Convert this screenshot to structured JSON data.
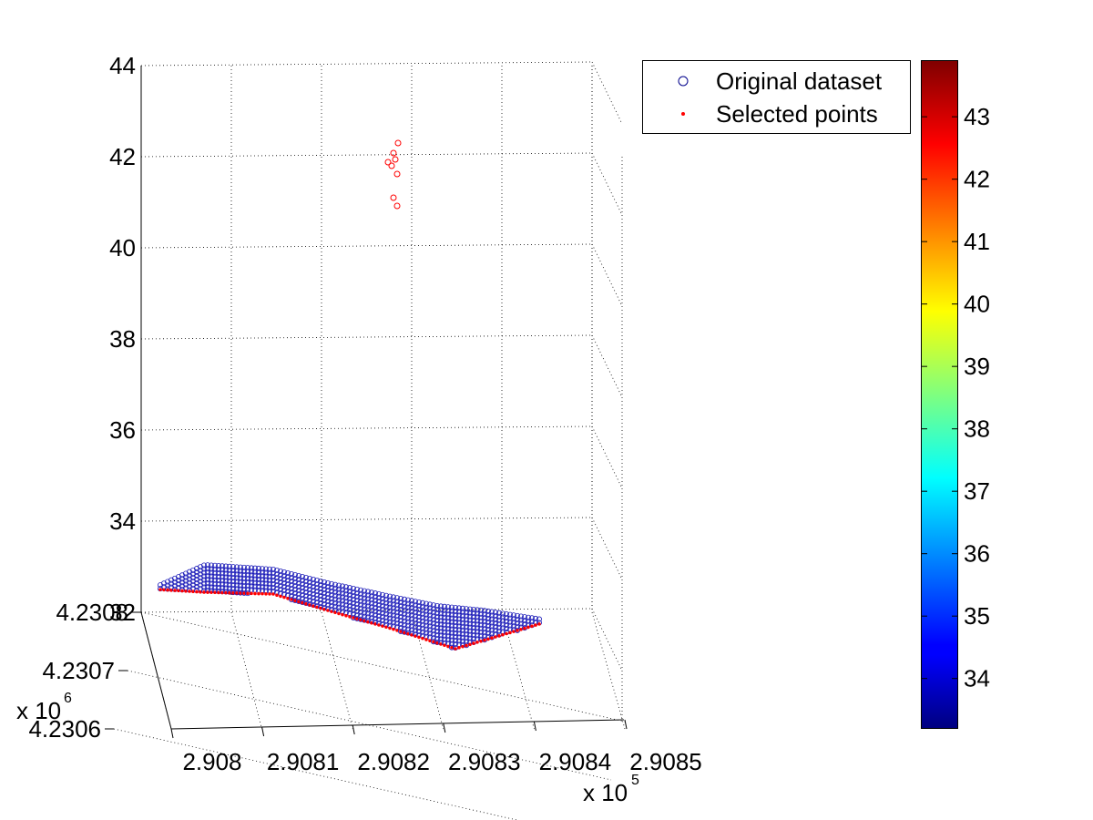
{
  "chart_data": {
    "type": "scatter",
    "view": "3d",
    "x_axis": {
      "ticks": [
        2.908,
        2.9081,
        2.9082,
        2.9083,
        2.9084,
        2.9085
      ],
      "tick_labels": [
        "2.908",
        "2.9081",
        "2.9082",
        "2.9083",
        "2.9084",
        "2.9085"
      ],
      "multiplier_base": "x 10",
      "multiplier_exp": "5"
    },
    "y_axis": {
      "ticks": [
        4.2306,
        4.2307,
        4.2308
      ],
      "tick_labels": [
        "4.2306",
        "4.2307",
        "4.2308"
      ],
      "multiplier_base": "x 10",
      "multiplier_exp": "6"
    },
    "z_axis": {
      "ticks": [
        32,
        34,
        36,
        38,
        40,
        42,
        44
      ],
      "tick_labels": [
        "32",
        "34",
        "36",
        "38",
        "40",
        "42",
        "44"
      ],
      "range": [
        32,
        44
      ]
    },
    "grid": true,
    "legend": {
      "placement": "top-right",
      "entries": [
        {
          "label": "Original dataset",
          "marker": "open-circle",
          "color": "#00008b"
        },
        {
          "label": "Selected points",
          "marker": "dot",
          "color": "#ff0000"
        }
      ]
    },
    "colorbar": {
      "colormap": "jet",
      "range": [
        33.2,
        43.9
      ],
      "ticks": [
        34,
        35,
        36,
        37,
        38,
        39,
        40,
        41,
        42,
        43
      ],
      "tick_labels": [
        "34",
        "35",
        "36",
        "37",
        "38",
        "39",
        "40",
        "41",
        "42",
        "43"
      ]
    },
    "series": [
      {
        "name": "Selected points",
        "values_xyz": [
          [
            2.90816,
            4.23065,
            42.3
          ],
          [
            2.90815,
            4.23065,
            42.1
          ],
          [
            2.90816,
            4.23065,
            41.9
          ],
          [
            2.90815,
            4.23065,
            41.8
          ],
          [
            2.90816,
            4.23065,
            41.5
          ],
          [
            2.90816,
            4.23065,
            41.0
          ],
          [
            2.90816,
            4.23065,
            40.8
          ],
          [
            2.90816,
            4.23065,
            40.4
          ]
        ]
      }
    ]
  }
}
